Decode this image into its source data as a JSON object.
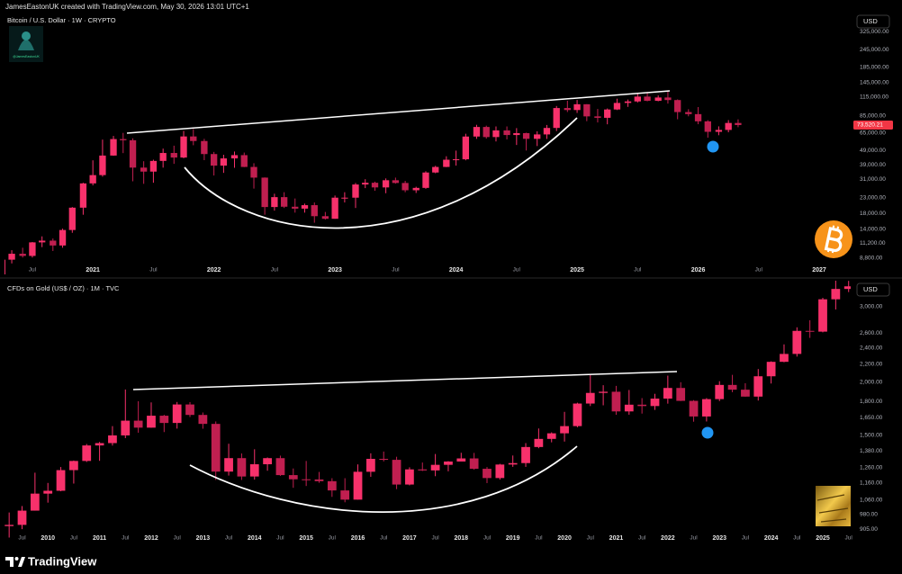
{
  "header": {
    "text": "JamesEastonUK created with TradingView.com, May 30, 2026 13:01 UTC+1",
    "avatar_label": "@JamesEastonUK"
  },
  "footer": {
    "brand": "TradingView"
  },
  "chart_data": [
    {
      "type": "candlestick",
      "title": "Bitcoin / U.S. Dollar · 1W · CRYPTO",
      "currency": "USD",
      "log_scale": true,
      "grid": false,
      "up_color": "#f7316b",
      "down_color": "#c01f50",
      "x": [
        2020.25,
        2020.33,
        2020.42,
        2020.5,
        2020.58,
        2020.67,
        2020.75,
        2020.83,
        2020.92,
        2021,
        2021.08,
        2021.17,
        2021.25,
        2021.33,
        2021.42,
        2021.5,
        2021.58,
        2021.67,
        2021.75,
        2021.83,
        2021.92,
        2022,
        2022.08,
        2022.17,
        2022.25,
        2022.33,
        2022.42,
        2022.5,
        2022.58,
        2022.67,
        2022.75,
        2022.83,
        2022.92,
        2023,
        2023.08,
        2023.17,
        2023.25,
        2023.33,
        2023.42,
        2023.5,
        2023.58,
        2023.67,
        2023.75,
        2023.83,
        2023.92,
        2024,
        2024.08,
        2024.17,
        2024.25,
        2024.33,
        2024.42,
        2024.5,
        2024.58,
        2024.67,
        2024.75,
        2024.83,
        2024.92,
        2025,
        2025.08,
        2025.17,
        2025.25,
        2025.33,
        2025.42,
        2025.5,
        2025.58,
        2025.67,
        2025.75,
        2025.83,
        2025.92,
        2026,
        2026.08,
        2026.17,
        2026.25,
        2026.33
      ],
      "open": [
        6400,
        8600,
        9450,
        9130,
        11330,
        11650,
        10780,
        13800,
        19700,
        29000,
        33100,
        45200,
        58800,
        57700,
        37300,
        35000,
        41500,
        47100,
        43800,
        61300,
        57000,
        46300,
        38500,
        43200,
        45500,
        37700,
        31800,
        19900,
        23300,
        20000,
        19400,
        20500,
        17200,
        16500,
        23100,
        23100,
        28500,
        29300,
        27200,
        30500,
        29200,
        26000,
        27000,
        34500,
        37700,
        42300,
        42600,
        61200,
        71300,
        60700,
        67500,
        62700,
        64600,
        59000,
        63300,
        70200,
        96400,
        93400,
        102400,
        84400,
        82500,
        94200,
        104600,
        107100,
        115700,
        108200,
        114000,
        109500,
        90400,
        87500,
        78000,
        66000,
        68000,
        76000
      ],
      "high": [
        9400,
        10000,
        10400,
        11400,
        12470,
        12050,
        14100,
        19900,
        29300,
        41900,
        58300,
        61800,
        64900,
        59500,
        41300,
        42300,
        50500,
        52900,
        67000,
        69000,
        59000,
        47900,
        45800,
        48200,
        47400,
        40000,
        31900,
        24600,
        25200,
        22800,
        21000,
        21400,
        18400,
        23900,
        25200,
        29200,
        31000,
        29800,
        31400,
        31800,
        30200,
        27500,
        35200,
        38400,
        44700,
        48900,
        64000,
        73800,
        72800,
        71900,
        71900,
        70000,
        65100,
        66500,
        73600,
        99600,
        108300,
        109600,
        102500,
        95000,
        95700,
        111900,
        110400,
        123200,
        124400,
        117900,
        126200,
        110600,
        94600,
        97900,
        79400,
        72000,
        79500,
        80500
      ],
      "low": [
        6200,
        8100,
        8900,
        8900,
        10500,
        9880,
        10400,
        13200,
        17600,
        28100,
        32300,
        45000,
        47000,
        30000,
        28800,
        29300,
        37300,
        39600,
        43300,
        53300,
        42000,
        32900,
        34300,
        37200,
        37600,
        26700,
        17600,
        18800,
        19600,
        18200,
        18200,
        15500,
        16300,
        16500,
        21400,
        19600,
        26900,
        25800,
        24800,
        28900,
        25200,
        24900,
        26600,
        34100,
        37600,
        38500,
        41900,
        59000,
        59200,
        56600,
        58500,
        53500,
        49000,
        52600,
        58900,
        66800,
        90500,
        89200,
        78200,
        76600,
        74400,
        93400,
        98200,
        105300,
        107300,
        107300,
        103500,
        80600,
        84500,
        74500,
        60100,
        62500,
        65500,
        71000
      ],
      "close": [
        8600,
        9450,
        9130,
        11330,
        11650,
        10780,
        13800,
        19700,
        29000,
        33100,
        45200,
        58800,
        57700,
        37300,
        35000,
        41500,
        47100,
        43800,
        61300,
        57000,
        46300,
        38500,
        43200,
        45500,
        37700,
        31800,
        19900,
        23300,
        20000,
        19400,
        20500,
        17200,
        16500,
        23100,
        23100,
        28500,
        29300,
        27200,
        30500,
        29200,
        26000,
        27000,
        34500,
        37700,
        42300,
        42600,
        61200,
        71300,
        60700,
        67500,
        62700,
        64600,
        59000,
        63300,
        70200,
        96400,
        93400,
        102400,
        84400,
        82500,
        94200,
        104600,
        107100,
        115700,
        108200,
        114000,
        109500,
        90400,
        87500,
        78000,
        66000,
        68000,
        76000,
        73520.21
      ],
      "last_price": {
        "value": 73520.21,
        "label": "73,520.21"
      },
      "last_price_color": "#f23645",
      "xlim": [
        2020.27,
        2027.26
      ],
      "xticks": [
        {
          "value": 2020.5,
          "label": "Jul"
        },
        2021,
        {
          "value": 2021.5,
          "label": "Jul"
        },
        2022,
        {
          "value": 2022.5,
          "label": "Jul"
        },
        2023,
        {
          "value": 2023.5,
          "label": "Jul"
        },
        2024,
        {
          "value": 2024.5,
          "label": "Jul"
        },
        2025,
        {
          "value": 2025.5,
          "label": "Jul"
        },
        2026,
        {
          "value": 2026.5,
          "label": "Jul"
        },
        2027
      ],
      "ylim": [
        6800,
        435000
      ],
      "yticks": [
        {
          "value": 325000,
          "label": "325,000.00"
        },
        {
          "value": 245000,
          "label": "245,000.00"
        },
        {
          "value": 185000,
          "label": "185,000.00"
        },
        {
          "value": 145000,
          "label": "145,000.00"
        },
        {
          "value": 115000,
          "label": "115,000.00"
        },
        {
          "value": 85000,
          "label": "85,000.00"
        },
        {
          "value": 65000,
          "label": "65,000.00"
        },
        {
          "value": 49000,
          "label": "49,000.00"
        },
        {
          "value": 39000,
          "label": "39,000.00"
        },
        {
          "value": 31000,
          "label": "31,000.00"
        },
        {
          "value": 23000,
          "label": "23,000.00"
        },
        {
          "value": 18000,
          "label": "18,000.00"
        },
        {
          "value": 14000,
          "label": "14,000.00"
        },
        {
          "value": 11200,
          "label": "11,200.00"
        },
        {
          "value": 8800,
          "label": "8,800.00"
        }
      ]
    },
    {
      "type": "candlestick",
      "title": "CFDs on Gold (US$ / OZ) · 1M · TVC",
      "currency": "USD",
      "log_scale": true,
      "grid": false,
      "up_color": "#f7316b",
      "down_color": "#c01f50",
      "x": [
        2009.25,
        2009.5,
        2009.75,
        2010,
        2010.25,
        2010.5,
        2010.75,
        2011,
        2011.25,
        2011.5,
        2011.75,
        2012,
        2012.25,
        2012.5,
        2012.75,
        2013,
        2013.25,
        2013.5,
        2013.75,
        2014,
        2014.25,
        2014.5,
        2014.75,
        2015,
        2015.25,
        2015.5,
        2015.75,
        2016,
        2016.25,
        2016.5,
        2016.75,
        2017,
        2017.25,
        2017.5,
        2017.75,
        2018,
        2018.25,
        2018.5,
        2018.75,
        2019,
        2019.25,
        2019.5,
        2019.75,
        2020,
        2020.25,
        2020.5,
        2020.75,
        2021,
        2021.25,
        2021.5,
        2021.75,
        2022,
        2022.25,
        2022.5,
        2022.75,
        2023,
        2023.25,
        2023.5,
        2023.75,
        2024,
        2024.25,
        2024.5,
        2024.75,
        2025,
        2025.25,
        2025.5
      ],
      "open": [
        920,
        926,
        1000,
        1096,
        1113,
        1244,
        1307,
        1421,
        1439,
        1500,
        1624,
        1564,
        1668,
        1604,
        1772,
        1675,
        1596,
        1234,
        1327,
        1202,
        1284,
        1327,
        1211,
        1184,
        1183,
        1172,
        1115,
        1061,
        1233,
        1322,
        1315,
        1151,
        1249,
        1242,
        1280,
        1303,
        1325,
        1253,
        1192,
        1282,
        1292,
        1409,
        1472,
        1517,
        1577,
        1781,
        1886,
        1898,
        1707,
        1770,
        1757,
        1829,
        1937,
        1807,
        1661,
        1824,
        1969,
        1919,
        1849,
        2063,
        2230,
        2327,
        2635,
        2624,
        3124,
        3303
      ],
      "high": [
        990,
        1025,
        1227,
        1161,
        1265,
        1310,
        1432,
        1448,
        1577,
        1921,
        1803,
        1792,
        1676,
        1796,
        1795,
        1697,
        1617,
        1434,
        1361,
        1392,
        1332,
        1345,
        1255,
        1307,
        1232,
        1191,
        1191,
        1283,
        1362,
        1375,
        1337,
        1263,
        1296,
        1357,
        1306,
        1366,
        1365,
        1265,
        1287,
        1346,
        1439,
        1557,
        1525,
        1703,
        1789,
        2075,
        1966,
        1959,
        1916,
        1834,
        1877,
        2070,
        1998,
        1814,
        1834,
        2009,
        2079,
        1987,
        2145,
        2236,
        2450,
        2686,
        2790,
        3149,
        3500,
        3450
      ],
      "low": [
        865,
        905,
        1000,
        1044,
        1110,
        1157,
        1300,
        1308,
        1420,
        1478,
        1522,
        1563,
        1527,
        1556,
        1656,
        1555,
        1180,
        1208,
        1180,
        1182,
        1240,
        1206,
        1131,
        1142,
        1162,
        1077,
        1046,
        1061,
        1200,
        1304,
        1123,
        1146,
        1238,
        1204,
        1236,
        1303,
        1247,
        1160,
        1182,
        1266,
        1266,
        1400,
        1445,
        1451,
        1567,
        1757,
        1764,
        1676,
        1677,
        1687,
        1721,
        1780,
        1805,
        1615,
        1617,
        1805,
        1893,
        1848,
        1810,
        1984,
        2225,
        2294,
        2537,
        2614,
        2957,
        3248
      ],
      "close": [
        926,
        1000,
        1096,
        1113,
        1244,
        1307,
        1421,
        1439,
        1500,
        1624,
        1564,
        1668,
        1604,
        1772,
        1675,
        1596,
        1234,
        1327,
        1202,
        1284,
        1327,
        1211,
        1184,
        1183,
        1172,
        1115,
        1061,
        1233,
        1322,
        1315,
        1151,
        1249,
        1242,
        1280,
        1303,
        1325,
        1253,
        1192,
        1282,
        1292,
        1409,
        1472,
        1517,
        1577,
        1781,
        1886,
        1898,
        1707,
        1770,
        1757,
        1829,
        1937,
        1807,
        1661,
        1824,
        1969,
        1919,
        1849,
        2063,
        2230,
        2327,
        2635,
        2624,
        3124,
        3303,
        3350
      ],
      "xlim": [
        2009.16,
        2025.54
      ],
      "xticks": [
        {
          "value": 2009.5,
          "label": "Jul"
        },
        2010,
        {
          "value": 2010.5,
          "label": "Jul"
        },
        2011,
        {
          "value": 2011.5,
          "label": "Jul"
        },
        2012,
        {
          "value": 2012.5,
          "label": "Jul"
        },
        2013,
        {
          "value": 2013.5,
          "label": "Jul"
        },
        2014,
        {
          "value": 2014.5,
          "label": "Jul"
        },
        2015,
        {
          "value": 2015.5,
          "label": "Jul"
        },
        2016,
        {
          "value": 2016.5,
          "label": "Jul"
        },
        2017,
        {
          "value": 2017.5,
          "label": "Jul"
        },
        2018,
        {
          "value": 2018.5,
          "label": "Jul"
        },
        2019,
        {
          "value": 2019.5,
          "label": "Jul"
        },
        2020,
        {
          "value": 2020.5,
          "label": "Jul"
        },
        2021,
        {
          "value": 2021.5,
          "label": "Jul"
        },
        2022,
        {
          "value": 2022.5,
          "label": "Jul"
        },
        2023,
        {
          "value": 2023.5,
          "label": "Jul"
        },
        2024,
        {
          "value": 2024.5,
          "label": "Jul"
        },
        2025,
        {
          "value": 2025.5,
          "label": "Jul"
        }
      ],
      "ylim": [
        834,
        3453
      ],
      "yticks": [
        {
          "value": 3000,
          "label": "3,000.00"
        },
        {
          "value": 2600,
          "label": "2,600.00"
        },
        {
          "value": 2400,
          "label": "2,400.00"
        },
        {
          "value": 2200,
          "label": "2,200.00"
        },
        {
          "value": 2000,
          "label": "2,000.00"
        },
        {
          "value": 1800,
          "label": "1,800.00"
        },
        {
          "value": 1650,
          "label": "1,650.00"
        },
        {
          "value": 1500,
          "label": "1,500.00"
        },
        {
          "value": 1380,
          "label": "1,380.00"
        },
        {
          "value": 1260,
          "label": "1,260.00"
        },
        {
          "value": 1160,
          "label": "1,160.00"
        },
        {
          "value": 1060,
          "label": "1,060.00"
        },
        {
          "value": 980,
          "label": "980.00"
        },
        {
          "value": 905,
          "label": "905.00"
        }
      ]
    }
  ]
}
